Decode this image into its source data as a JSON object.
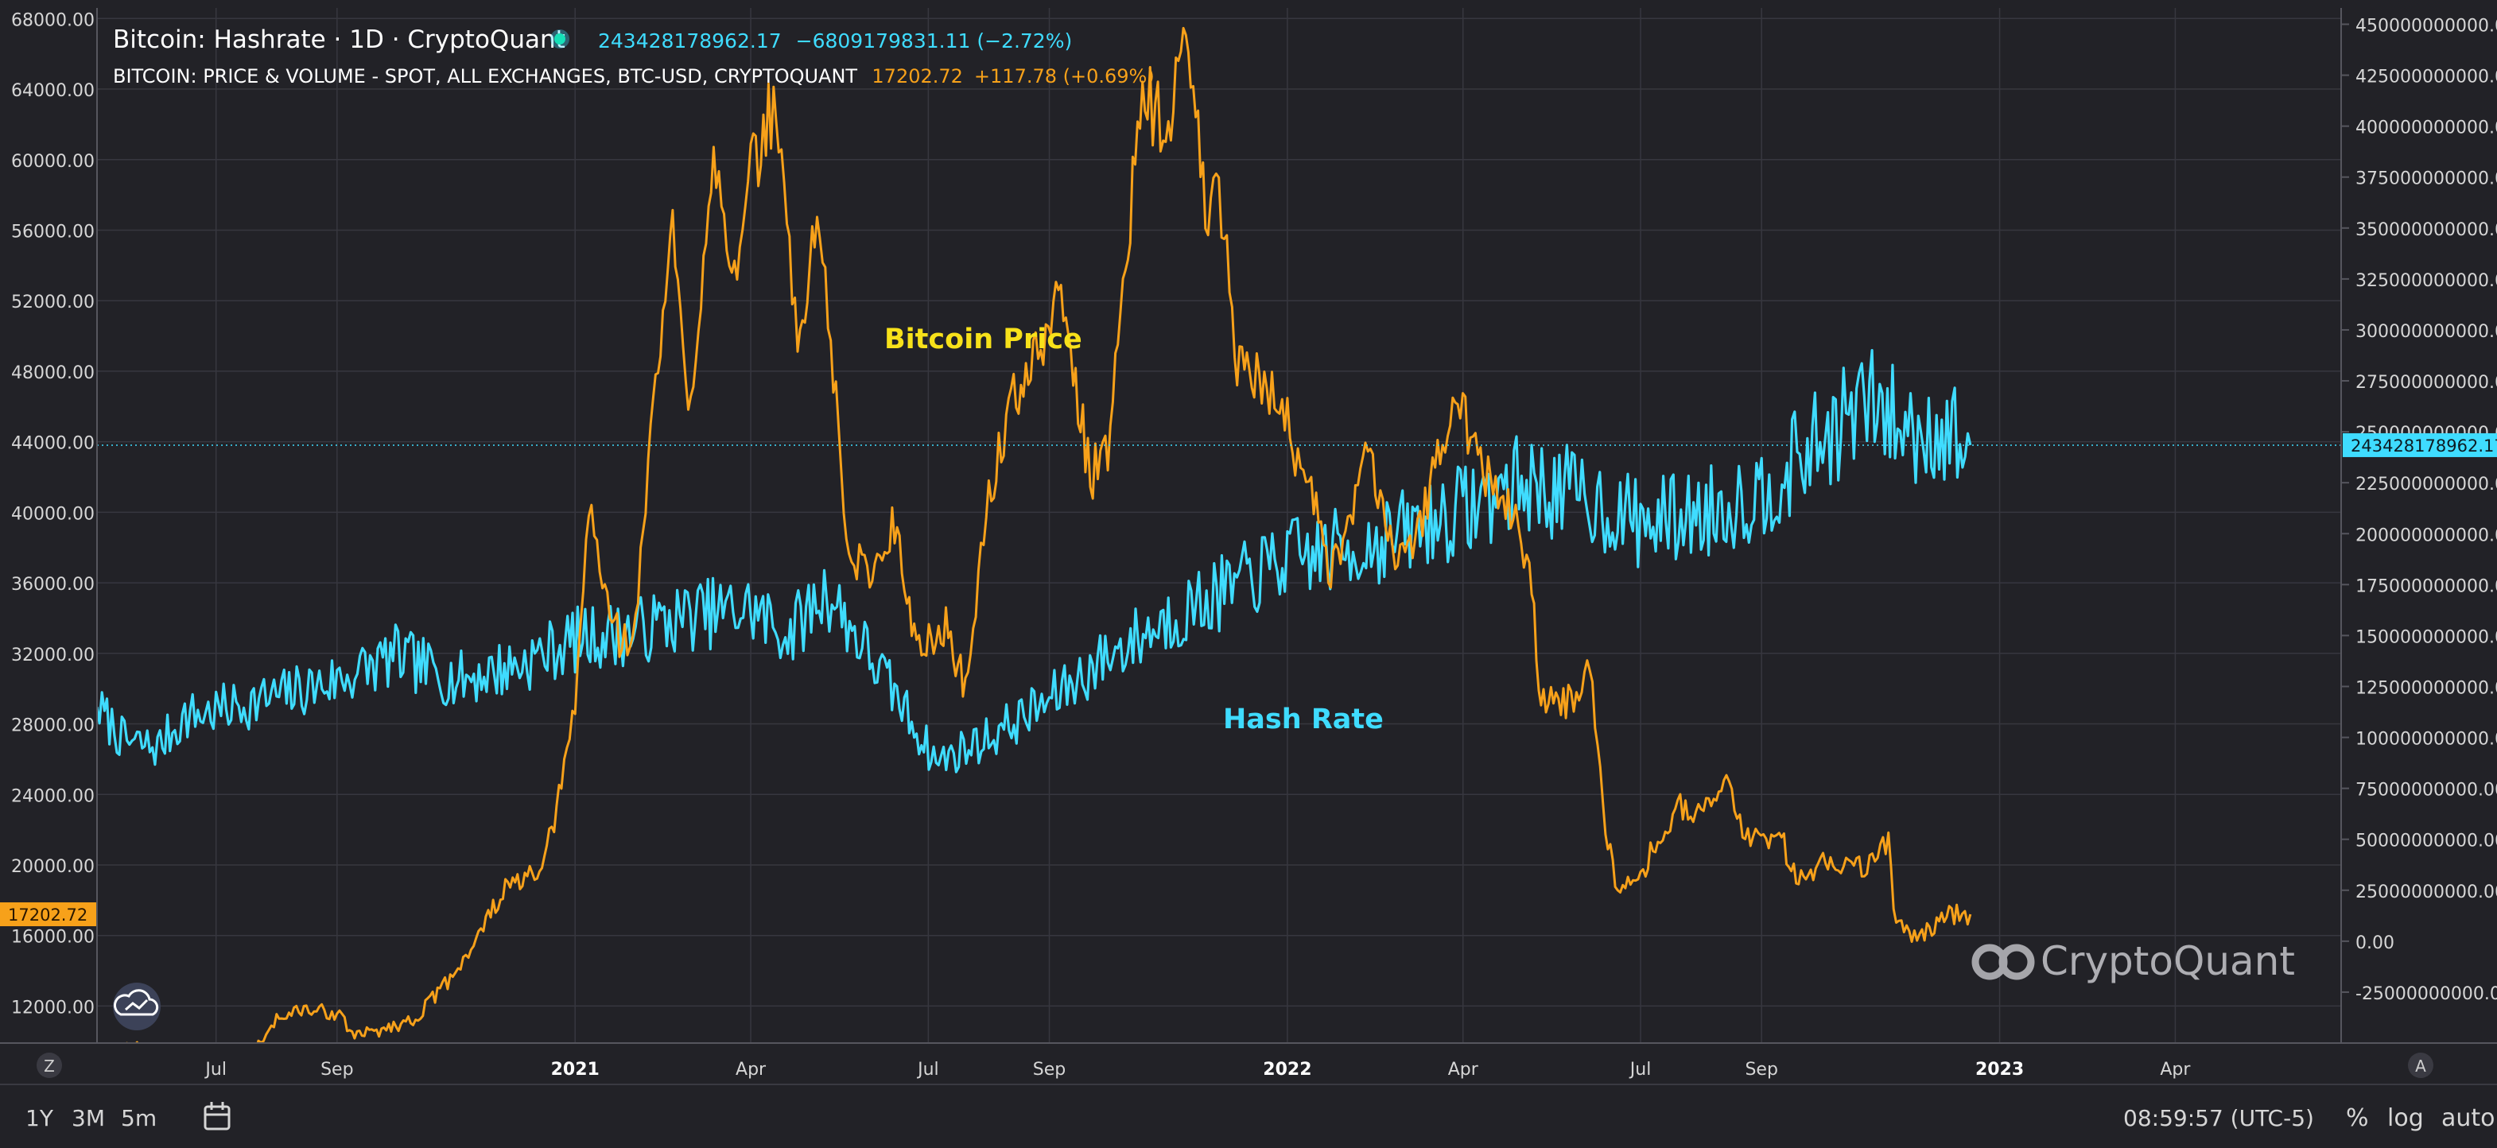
{
  "header": {
    "title": "Bitcoin: Hashrate · 1D · CryptoQuant",
    "hashrate_value": "243428178962.17",
    "hashrate_change": "−6809179831.11 (−2.72%)",
    "price_series_title": "BITCOIN: PRICE & VOLUME - SPOT, ALL EXCHANGES, BTC-USD, CRYPTOQUANT",
    "price_value": "17202.72",
    "price_change": "+117.78 (+0.69%)"
  },
  "annotations": {
    "price_label": "Bitcoin Price",
    "hashrate_label": "Hash Rate",
    "watermark": "CryptoQuant"
  },
  "colors": {
    "background": "#222227",
    "grid": "#37373f",
    "price": "#f7a11a",
    "hashrate": "#3fdcff",
    "axis_text": "#d6d6d6",
    "price_label": "#f7e11a"
  },
  "toolbar": {
    "ranges": [
      "1Y",
      "3M",
      "5m"
    ],
    "calendar_icon": "calendar-icon",
    "time": "08:59:57 (UTC-5)",
    "percent": "%",
    "log": "log",
    "auto": "auto",
    "left_scale_button": "Z",
    "right_scale_button": "A"
  },
  "chart_data": {
    "type": "line",
    "x_axis": {
      "type": "date",
      "range": [
        "2020-05-01",
        "2023-06-25"
      ],
      "ticks": [
        {
          "date": "2020-07-01",
          "label": "Jul"
        },
        {
          "date": "2020-09-01",
          "label": "Sep"
        },
        {
          "date": "2021-01-01",
          "label": "2021"
        },
        {
          "date": "2021-04-01",
          "label": "Apr"
        },
        {
          "date": "2021-07-01",
          "label": "Jul"
        },
        {
          "date": "2021-09-01",
          "label": "Sep"
        },
        {
          "date": "2022-01-01",
          "label": "2022"
        },
        {
          "date": "2022-04-01",
          "label": "Apr"
        },
        {
          "date": "2022-07-01",
          "label": "Jul"
        },
        {
          "date": "2022-09-01",
          "label": "Sep"
        },
        {
          "date": "2023-01-01",
          "label": "2023"
        },
        {
          "date": "2023-04-01",
          "label": "Apr"
        }
      ]
    },
    "left_axis": {
      "range": [
        9900,
        68600
      ],
      "ticks": [
        "12000.00",
        "16000.00",
        "20000.00",
        "24000.00",
        "28000.00",
        "32000.00",
        "36000.00",
        "40000.00",
        "44000.00",
        "48000.00",
        "52000.00",
        "56000.00",
        "60000.00",
        "64000.00",
        "68000.00"
      ]
    },
    "right_axis": {
      "range": [
        -50000000000,
        458000000000
      ],
      "ticks": [
        "-25000000000.00",
        "0.00",
        "25000000000.00",
        "50000000000.00",
        "75000000000.00",
        "100000000000.00",
        "125000000000.00",
        "150000000000.00",
        "175000000000.00",
        "200000000000.00",
        "225000000000.00",
        "250000000000.00",
        "275000000000.00",
        "300000000000.00",
        "325000000000.00",
        "350000000000.00",
        "375000000000.00",
        "400000000000.00",
        "425000000000.00",
        "450000000000.00"
      ]
    },
    "current_price": {
      "value": 17202.72,
      "label": "17202.72"
    },
    "current_hashrate": {
      "value": 243428178962.17,
      "label": "243428178962.17"
    },
    "series": [
      {
        "axis": "left",
        "color": "#f7a11a",
        "points": [
          [
            "2020-05-01",
            9100
          ],
          [
            "2020-05-15",
            9700
          ],
          [
            "2020-06-01",
            9600
          ],
          [
            "2020-06-15",
            9400
          ],
          [
            "2020-07-01",
            9200
          ],
          [
            "2020-07-20",
            9300
          ],
          [
            "2020-08-01",
            11300
          ],
          [
            "2020-08-15",
            11800
          ],
          [
            "2020-09-01",
            11600
          ],
          [
            "2020-09-10",
            10300
          ],
          [
            "2020-09-25",
            10700
          ],
          [
            "2020-10-10",
            11200
          ],
          [
            "2020-10-25",
            13000
          ],
          [
            "2020-11-10",
            15500
          ],
          [
            "2020-11-25",
            18500
          ],
          [
            "2020-12-05",
            19200
          ],
          [
            "2020-12-15",
            19400
          ],
          [
            "2020-12-25",
            24500
          ],
          [
            "2021-01-01",
            29000
          ],
          [
            "2021-01-08",
            40500
          ],
          [
            "2021-01-15",
            36000
          ],
          [
            "2021-01-25",
            32500
          ],
          [
            "2021-02-01",
            33500
          ],
          [
            "2021-02-10",
            46000
          ],
          [
            "2021-02-20",
            56000
          ],
          [
            "2021-02-28",
            45000
          ],
          [
            "2021-03-13",
            61000
          ],
          [
            "2021-03-25",
            52500
          ],
          [
            "2021-04-01",
            59000
          ],
          [
            "2021-04-14",
            63500
          ],
          [
            "2021-04-25",
            49000
          ],
          [
            "2021-05-05",
            57000
          ],
          [
            "2021-05-12",
            50000
          ],
          [
            "2021-05-20",
            38000
          ],
          [
            "2021-06-01",
            36500
          ],
          [
            "2021-06-15",
            39500
          ],
          [
            "2021-06-25",
            32000
          ],
          [
            "2021-07-10",
            33500
          ],
          [
            "2021-07-20",
            30000
          ],
          [
            "2021-08-01",
            41000
          ],
          [
            "2021-08-15",
            47000
          ],
          [
            "2021-08-25",
            48500
          ],
          [
            "2021-09-07",
            52500
          ],
          [
            "2021-09-22",
            42000
          ],
          [
            "2021-10-01",
            43500
          ],
          [
            "2021-10-10",
            55000
          ],
          [
            "2021-10-20",
            64000
          ],
          [
            "2021-11-01",
            61000
          ],
          [
            "2021-11-10",
            67500
          ],
          [
            "2021-11-20",
            57500
          ],
          [
            "2021-12-01",
            57000
          ],
          [
            "2021-12-05",
            49000
          ],
          [
            "2021-12-15",
            47500
          ],
          [
            "2021-12-28",
            47000
          ],
          [
            "2022-01-05",
            43000
          ],
          [
            "2022-01-12",
            42500
          ],
          [
            "2022-01-22",
            36000
          ],
          [
            "2022-02-01",
            38500
          ],
          [
            "2022-02-10",
            44000
          ],
          [
            "2022-02-24",
            38000
          ],
          [
            "2022-03-10",
            39000
          ],
          [
            "2022-03-28",
            47300
          ],
          [
            "2022-04-10",
            42500
          ],
          [
            "2022-04-28",
            39500
          ],
          [
            "2022-05-05",
            36500
          ],
          [
            "2022-05-11",
            29500
          ],
          [
            "2022-05-25",
            29200
          ],
          [
            "2022-06-05",
            31000
          ],
          [
            "2022-06-13",
            22500
          ],
          [
            "2022-06-18",
            19000
          ],
          [
            "2022-07-01",
            19500
          ],
          [
            "2022-07-20",
            23500
          ],
          [
            "2022-08-01",
            23000
          ],
          [
            "2022-08-14",
            24400
          ],
          [
            "2022-08-25",
            21500
          ],
          [
            "2022-09-10",
            21800
          ],
          [
            "2022-09-20",
            19000
          ],
          [
            "2022-10-05",
            20300
          ],
          [
            "2022-10-25",
            20000
          ],
          [
            "2022-11-05",
            21200
          ],
          [
            "2022-11-09",
            16500
          ],
          [
            "2022-11-21",
            15800
          ],
          [
            "2022-12-01",
            17000
          ],
          [
            "2022-12-10",
            17200
          ],
          [
            "2022-12-17",
            17202.72
          ]
        ]
      },
      {
        "axis": "right",
        "color": "#3fdcff",
        "points": [
          [
            "2020-05-01",
            115000000000
          ],
          [
            "2020-05-15",
            98000000000
          ],
          [
            "2020-06-01",
            95000000000
          ],
          [
            "2020-06-15",
            110000000000
          ],
          [
            "2020-07-01",
            113000000000
          ],
          [
            "2020-08-01",
            120000000000
          ],
          [
            "2020-09-01",
            128000000000
          ],
          [
            "2020-10-01",
            140000000000
          ],
          [
            "2020-11-01",
            128000000000
          ],
          [
            "2020-12-01",
            135000000000
          ],
          [
            "2021-01-01",
            148000000000
          ],
          [
            "2021-02-01",
            152000000000
          ],
          [
            "2021-03-01",
            160000000000
          ],
          [
            "2021-04-01",
            163000000000
          ],
          [
            "2021-04-20",
            150000000000
          ],
          [
            "2021-05-10",
            172000000000
          ],
          [
            "2021-06-01",
            140000000000
          ],
          [
            "2021-06-20",
            112000000000
          ],
          [
            "2021-07-05",
            88000000000
          ],
          [
            "2021-08-01",
            100000000000
          ],
          [
            "2021-09-01",
            118000000000
          ],
          [
            "2021-10-01",
            140000000000
          ],
          [
            "2021-11-01",
            158000000000
          ],
          [
            "2021-12-01",
            172000000000
          ],
          [
            "2022-01-01",
            188000000000
          ],
          [
            "2022-02-01",
            192000000000
          ],
          [
            "2022-03-01",
            200000000000
          ],
          [
            "2022-04-01",
            212000000000
          ],
          [
            "2022-05-01",
            225000000000
          ],
          [
            "2022-06-01",
            218000000000
          ],
          [
            "2022-07-01",
            205000000000
          ],
          [
            "2022-08-01",
            210000000000
          ],
          [
            "2022-09-01",
            220000000000
          ],
          [
            "2022-10-01",
            245000000000
          ],
          [
            "2022-10-25",
            265000000000
          ],
          [
            "2022-11-15",
            250000000000
          ],
          [
            "2022-12-01",
            252000000000
          ],
          [
            "2022-12-17",
            243428178962.17
          ]
        ]
      }
    ]
  }
}
